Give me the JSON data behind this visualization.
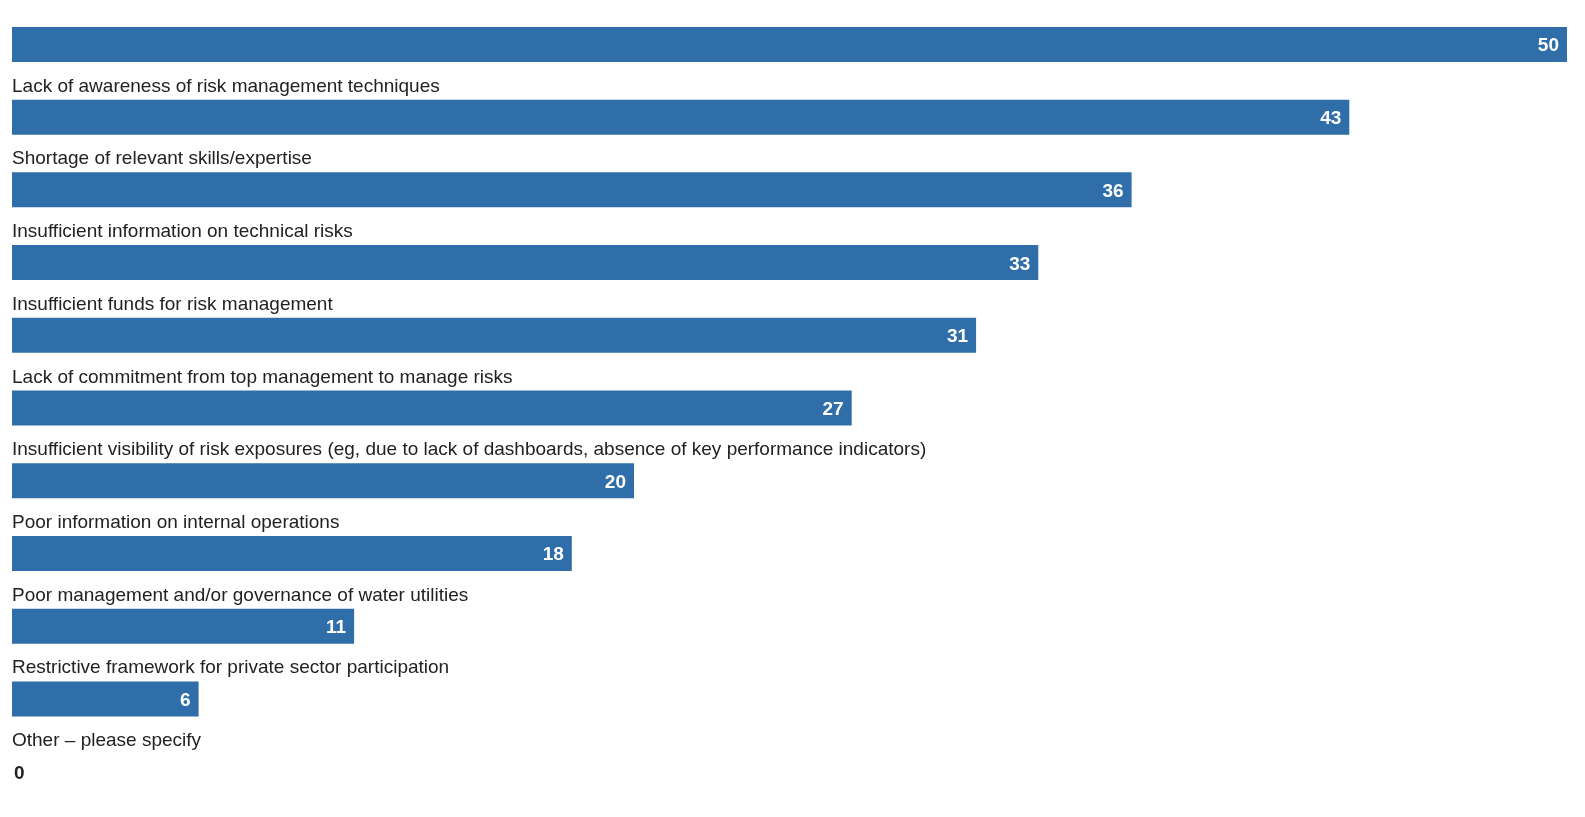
{
  "chart_data": {
    "type": "bar",
    "orientation": "horizontal",
    "categories": [
      null,
      "Lack of awareness of risk management techniques",
      "Shortage of relevant skills/expertise",
      "Insufficient information on technical risks",
      "Insufficient funds for risk management",
      "Lack of commitment from top management to manage risks",
      "Insufficient visibility of risk exposures (eg, due to lack of dashboards, absence of key performance indicators)",
      "Poor information on internal operations",
      "Poor management and/or governance of water utilities",
      "Restrictive framework for private sector participation",
      "Other – please specify"
    ],
    "values": [
      50,
      43,
      36,
      33,
      31,
      27,
      20,
      18,
      11,
      6,
      0
    ],
    "color": "#2f6ea8",
    "data_labels": true
  }
}
